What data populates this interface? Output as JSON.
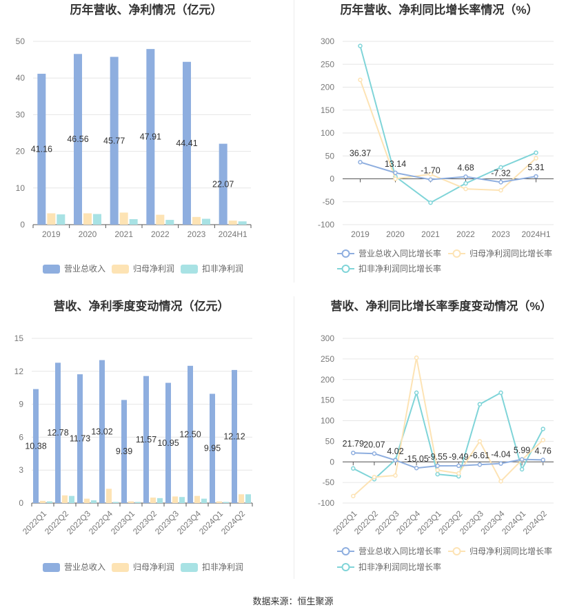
{
  "footer": "数据来源：恒生聚源",
  "colors": {
    "revenue": "#8eaedf",
    "net_profit": "#fde3b4",
    "deducted_profit": "#a8e2e4",
    "growth_revenue": "#8eaedf",
    "growth_net": "#fde3b4",
    "growth_deducted": "#7fd4d8"
  },
  "chart_data": [
    {
      "id": "annual-bar",
      "type": "bar",
      "title": "历年营收、净利情况（亿元）",
      "categories": [
        "2019",
        "2020",
        "2021",
        "2022",
        "2023",
        "2024H1"
      ],
      "ylim": [
        0,
        50
      ],
      "yticks": [
        0,
        10,
        20,
        30,
        40,
        50
      ],
      "series": [
        {
          "name": "营业总收入",
          "values": [
            41.16,
            46.56,
            45.77,
            47.91,
            44.41,
            22.07
          ],
          "labels": [
            "41.16",
            "46.56",
            "45.77",
            "47.91",
            "44.41",
            "22.07"
          ]
        },
        {
          "name": "归母净利润",
          "values": [
            3.1,
            3.1,
            3.3,
            2.7,
            2.1,
            1.1
          ]
        },
        {
          "name": "扣非净利润",
          "values": [
            2.8,
            2.9,
            1.5,
            1.3,
            1.6,
            0.9
          ]
        }
      ]
    },
    {
      "id": "annual-growth",
      "type": "line",
      "title": "历年营收、净利同比增长率情况（%）",
      "categories": [
        "2019",
        "2020",
        "2021",
        "2022",
        "2023",
        "2024H1"
      ],
      "ylim": [
        -100,
        300
      ],
      "yticks": [
        -100,
        -50,
        0,
        50,
        100,
        150,
        200,
        250,
        300
      ],
      "series": [
        {
          "name": "营业总收入同比增长率",
          "values": [
            36.37,
            13.14,
            -1.7,
            4.68,
            -7.32,
            5.31
          ],
          "labels": [
            "36.37",
            "13.14",
            "-1.70",
            "4.68",
            "-7.32",
            "5.31"
          ]
        },
        {
          "name": "归母净利润同比增长率",
          "values": [
            216,
            0,
            10,
            -22,
            -25,
            45
          ]
        },
        {
          "name": "扣非净利润同比增长率",
          "values": [
            290,
            5,
            -52,
            -10,
            25,
            57
          ]
        }
      ]
    },
    {
      "id": "quarterly-bar",
      "type": "bar",
      "title": "营收、净利季度变动情况（亿元）",
      "categories": [
        "2022Q1",
        "2022Q2",
        "2022Q3",
        "2022Q4",
        "2023Q1",
        "2023Q2",
        "2023Q3",
        "2023Q4",
        "2024Q1",
        "2024Q2"
      ],
      "ylim": [
        0,
        15
      ],
      "yticks": [
        0,
        3,
        6,
        9,
        12,
        15
      ],
      "series": [
        {
          "name": "营业总收入",
          "values": [
            10.38,
            12.78,
            11.73,
            13.02,
            9.39,
            11.57,
            10.95,
            12.5,
            9.95,
            12.12
          ],
          "labels": [
            "10.38",
            "12.78",
            "11.73",
            "13.02",
            "9.39",
            "11.57",
            "10.95",
            "12.50",
            "9.95",
            "12.12"
          ]
        },
        {
          "name": "归母净利润",
          "values": [
            0.2,
            0.7,
            0.4,
            1.3,
            0.15,
            0.5,
            0.6,
            0.65,
            0.15,
            0.8
          ]
        },
        {
          "name": "扣非净利润",
          "values": [
            0.15,
            0.65,
            0.25,
            0.1,
            0.1,
            0.45,
            0.55,
            0.4,
            0.1,
            0.8
          ]
        }
      ]
    },
    {
      "id": "quarterly-growth",
      "type": "line",
      "title": "营收、净利同比增长率季度变动情况（%）",
      "categories": [
        "2022Q1",
        "2022Q2",
        "2022Q3",
        "2022Q4",
        "2023Q1",
        "2023Q2",
        "2023Q3",
        "2023Q4",
        "2024Q1",
        "2024Q2"
      ],
      "ylim": [
        -100,
        300
      ],
      "yticks": [
        -100,
        -50,
        0,
        50,
        100,
        150,
        200,
        250,
        300
      ],
      "series": [
        {
          "name": "营业总收入同比增长率",
          "values": [
            21.79,
            20.07,
            4.02,
            -15.05,
            -9.55,
            -9.49,
            -6.61,
            -4.04,
            5.99,
            4.76
          ],
          "labels": [
            "21.79",
            "20.07",
            "4.02",
            "-15.05",
            "-9.55",
            "-9.49",
            "-6.61",
            "-4.04",
            "5.99",
            "4.76"
          ]
        },
        {
          "name": "归母净利润同比增长率",
          "values": [
            -83,
            -37,
            -33,
            253,
            -20,
            -28,
            50,
            -47,
            5,
            53
          ]
        },
        {
          "name": "扣非净利润同比增长率",
          "values": [
            -16,
            -42,
            5,
            168,
            -30,
            -35,
            140,
            168,
            -18,
            80
          ]
        }
      ]
    }
  ]
}
